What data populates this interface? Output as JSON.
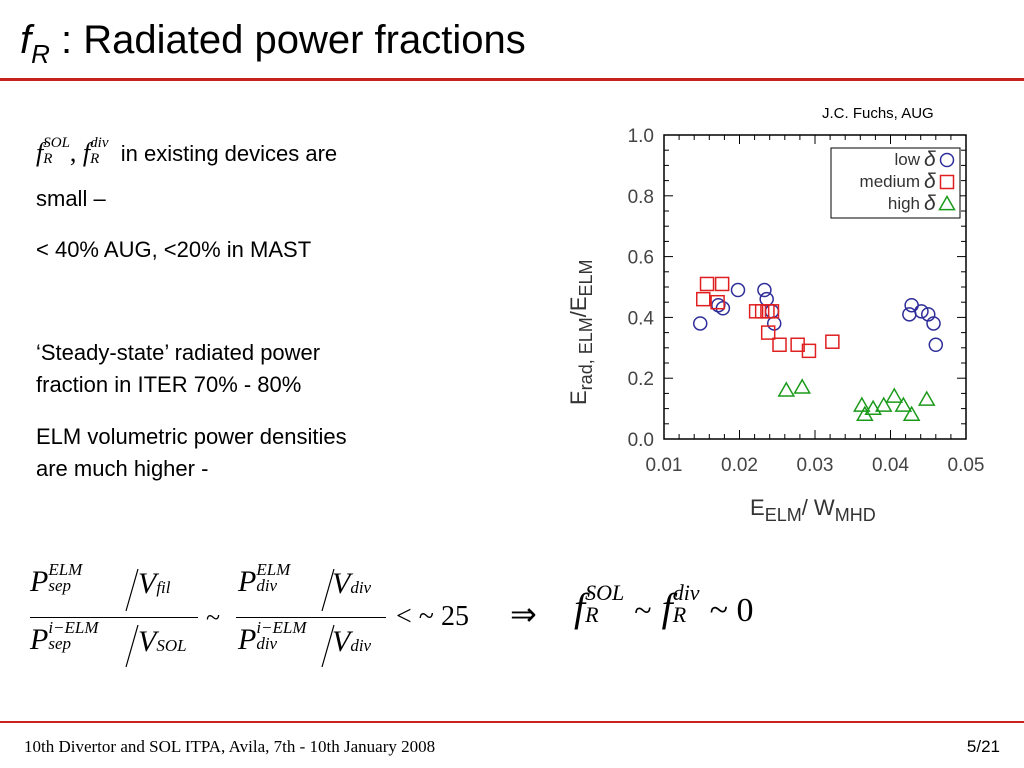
{
  "slide": {
    "title_f": "f",
    "title_sub": "R",
    "title_rest": " : Radiated power fractions",
    "credit": "J.C. Fuchs, AUG"
  },
  "left_text": {
    "formula_f": "f",
    "formula_sol": "SOL",
    "formula_r": "R",
    "formula_comma": ",",
    "formula_div": "div",
    "line1_rest": "in existing devices are",
    "line1b": "small –",
    "line2": "< 40% AUG, <20% in MAST",
    "para2_a": "‘Steady-state’ radiated power",
    "para2_b": "fraction in ITER 70% - 80%",
    "para3_a": "ELM volumetric power densities",
    "para3_b": "are much higher -"
  },
  "equation": {
    "P": "P",
    "V": "V",
    "elm": "ELM",
    "i_elm": "i−ELM",
    "sep": "sep",
    "fil": "fil",
    "sol": "SOL",
    "div": "div",
    "tilde": "~",
    "lt25": "< ~ 25",
    "implies": "⇒",
    "f": "f",
    "R": "R",
    "sim": "~",
    "zero": "~ 0",
    "SOLsup": "SOL"
  },
  "footer": {
    "left": "10th Divertor and SOL ITPA, Avila, 7th - 10th January 2008",
    "right": "5/21"
  },
  "chart_data": {
    "type": "scatter",
    "xlabel_main": "E",
    "xlabel_sub1": "ELM",
    "xlabel_mid": "/ W",
    "xlabel_sub2": "MHD",
    "ylabel_e": "E",
    "ylabel_sub": "rad, ELM",
    "ylabel_slash": "/E",
    "ylabel_sub2": "ELM",
    "xlim": [
      0.01,
      0.05
    ],
    "ylim": [
      0.0,
      1.0
    ],
    "xticks": [
      "0.01",
      "0.02",
      "0.03",
      "0.04",
      "0.05"
    ],
    "yticks": [
      "0.0",
      "0.2",
      "0.4",
      "0.6",
      "0.8",
      "1.0"
    ],
    "legend_position": "top-right",
    "series": [
      {
        "name": "low",
        "marker": "circle",
        "color": "#2e2e9a",
        "points": [
          [
            0.0148,
            0.38
          ],
          [
            0.0172,
            0.44
          ],
          [
            0.0178,
            0.43
          ],
          [
            0.0198,
            0.49
          ],
          [
            0.0233,
            0.49
          ],
          [
            0.0236,
            0.46
          ],
          [
            0.0243,
            0.42
          ],
          [
            0.0246,
            0.38
          ],
          [
            0.0425,
            0.41
          ],
          [
            0.0428,
            0.44
          ],
          [
            0.0441,
            0.42
          ],
          [
            0.045,
            0.41
          ],
          [
            0.0457,
            0.38
          ],
          [
            0.046,
            0.31
          ]
        ]
      },
      {
        "name": "medium",
        "marker": "square",
        "color": "#e02020",
        "points": [
          [
            0.0152,
            0.46
          ],
          [
            0.0157,
            0.51
          ],
          [
            0.0171,
            0.45
          ],
          [
            0.0177,
            0.51
          ],
          [
            0.0222,
            0.42
          ],
          [
            0.023,
            0.42
          ],
          [
            0.0237,
            0.42
          ],
          [
            0.0243,
            0.42
          ],
          [
            0.0238,
            0.35
          ],
          [
            0.0253,
            0.31
          ],
          [
            0.0277,
            0.31
          ],
          [
            0.0292,
            0.29
          ],
          [
            0.0323,
            0.32
          ]
        ]
      },
      {
        "name": "high",
        "marker": "triangle",
        "color": "#1a9a1a",
        "points": [
          [
            0.0262,
            0.16
          ],
          [
            0.0283,
            0.17
          ],
          [
            0.0362,
            0.11
          ],
          [
            0.0366,
            0.08
          ],
          [
            0.0377,
            0.1
          ],
          [
            0.0391,
            0.11
          ],
          [
            0.0405,
            0.14
          ],
          [
            0.0417,
            0.11
          ],
          [
            0.0428,
            0.08
          ],
          [
            0.0448,
            0.13
          ]
        ]
      }
    ]
  }
}
